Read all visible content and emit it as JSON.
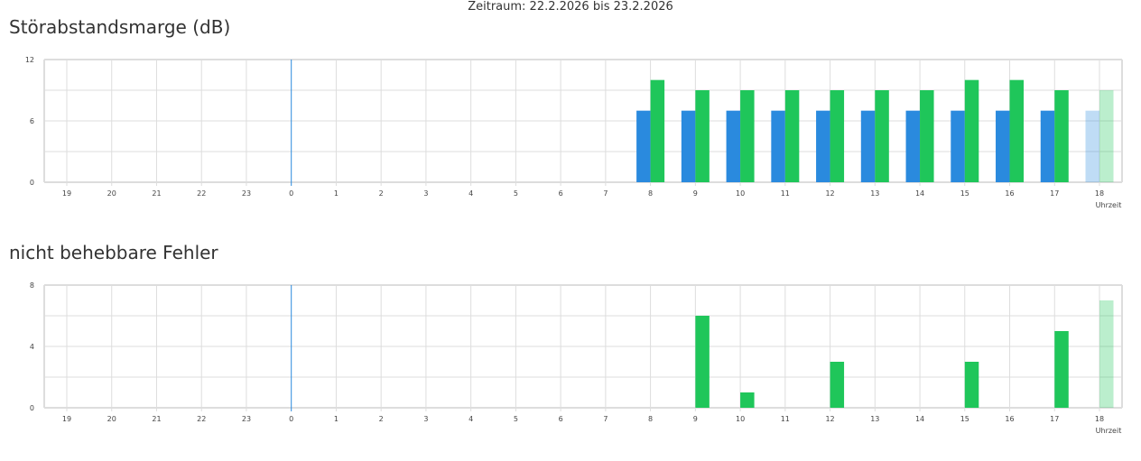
{
  "header": {
    "period": "Zeitraum: 22.2.2026 bis 23.2.2026"
  },
  "chart_data": [
    {
      "type": "bar",
      "title": "Störabstandsmarge (dB)",
      "xlabel": "Uhrzeit",
      "categories": [
        "19",
        "20",
        "21",
        "22",
        "23",
        "0",
        "1",
        "2",
        "3",
        "4",
        "5",
        "6",
        "7",
        "8",
        "9",
        "10",
        "11",
        "12",
        "13",
        "14",
        "15",
        "16",
        "17",
        "18"
      ],
      "ylim": [
        0,
        12
      ],
      "yticks": [
        0,
        6,
        12
      ],
      "grid": true,
      "day_marker": "0",
      "highlight_last": true,
      "series": [
        {
          "color": "#2a8ade",
          "values": [
            null,
            null,
            null,
            null,
            null,
            null,
            null,
            null,
            null,
            null,
            null,
            null,
            null,
            7,
            7,
            7,
            7,
            7,
            7,
            7,
            7,
            7,
            7,
            7
          ]
        },
        {
          "color": "#1fc65a",
          "values": [
            null,
            null,
            null,
            null,
            null,
            null,
            null,
            null,
            null,
            null,
            null,
            null,
            null,
            10,
            9,
            9,
            9,
            9,
            9,
            9,
            10,
            10,
            9,
            9
          ]
        }
      ]
    },
    {
      "type": "bar",
      "title": "nicht behebbare Fehler",
      "xlabel": "Uhrzeit",
      "categories": [
        "19",
        "20",
        "21",
        "22",
        "23",
        "0",
        "1",
        "2",
        "3",
        "4",
        "5",
        "6",
        "7",
        "8",
        "9",
        "10",
        "11",
        "12",
        "13",
        "14",
        "15",
        "16",
        "17",
        "18"
      ],
      "ylim": [
        0,
        8
      ],
      "yticks": [
        0,
        4,
        8
      ],
      "grid": true,
      "day_marker": "0",
      "highlight_last": true,
      "series": [
        {
          "color": "#1fc65a",
          "values": [
            null,
            null,
            null,
            null,
            null,
            null,
            null,
            null,
            null,
            null,
            null,
            null,
            null,
            0,
            6,
            1,
            0,
            3,
            0,
            0,
            3,
            0,
            5,
            7
          ]
        }
      ]
    }
  ]
}
